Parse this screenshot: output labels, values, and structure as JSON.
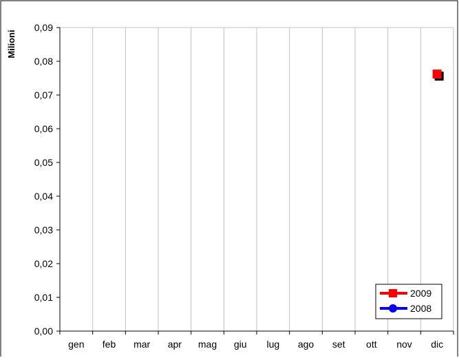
{
  "chart_data": {
    "type": "line",
    "ylabel": "Milioni",
    "xlabel": "",
    "categories": [
      "gen",
      "feb",
      "mar",
      "apr",
      "mag",
      "giu",
      "lug",
      "ago",
      "set",
      "ott",
      "nov",
      "dic"
    ],
    "ylim": [
      0,
      0.09
    ],
    "yticks": [
      "0,00",
      "0,01",
      "0,02",
      "0,03",
      "0,04",
      "0,05",
      "0,06",
      "0,07",
      "0,08",
      "0,09"
    ],
    "grid": "vertical",
    "legend_position": "bottom-right",
    "series": [
      {
        "name": "2009",
        "color": "#ff0000",
        "marker": "square",
        "values": [
          null,
          null,
          null,
          null,
          null,
          null,
          null,
          null,
          null,
          null,
          null,
          0.0762
        ]
      },
      {
        "name": "2008",
        "color": "#0000ff",
        "marker": "circle",
        "values": [
          null,
          null,
          null,
          null,
          null,
          null,
          null,
          null,
          null,
          null,
          null,
          null
        ]
      }
    ]
  }
}
